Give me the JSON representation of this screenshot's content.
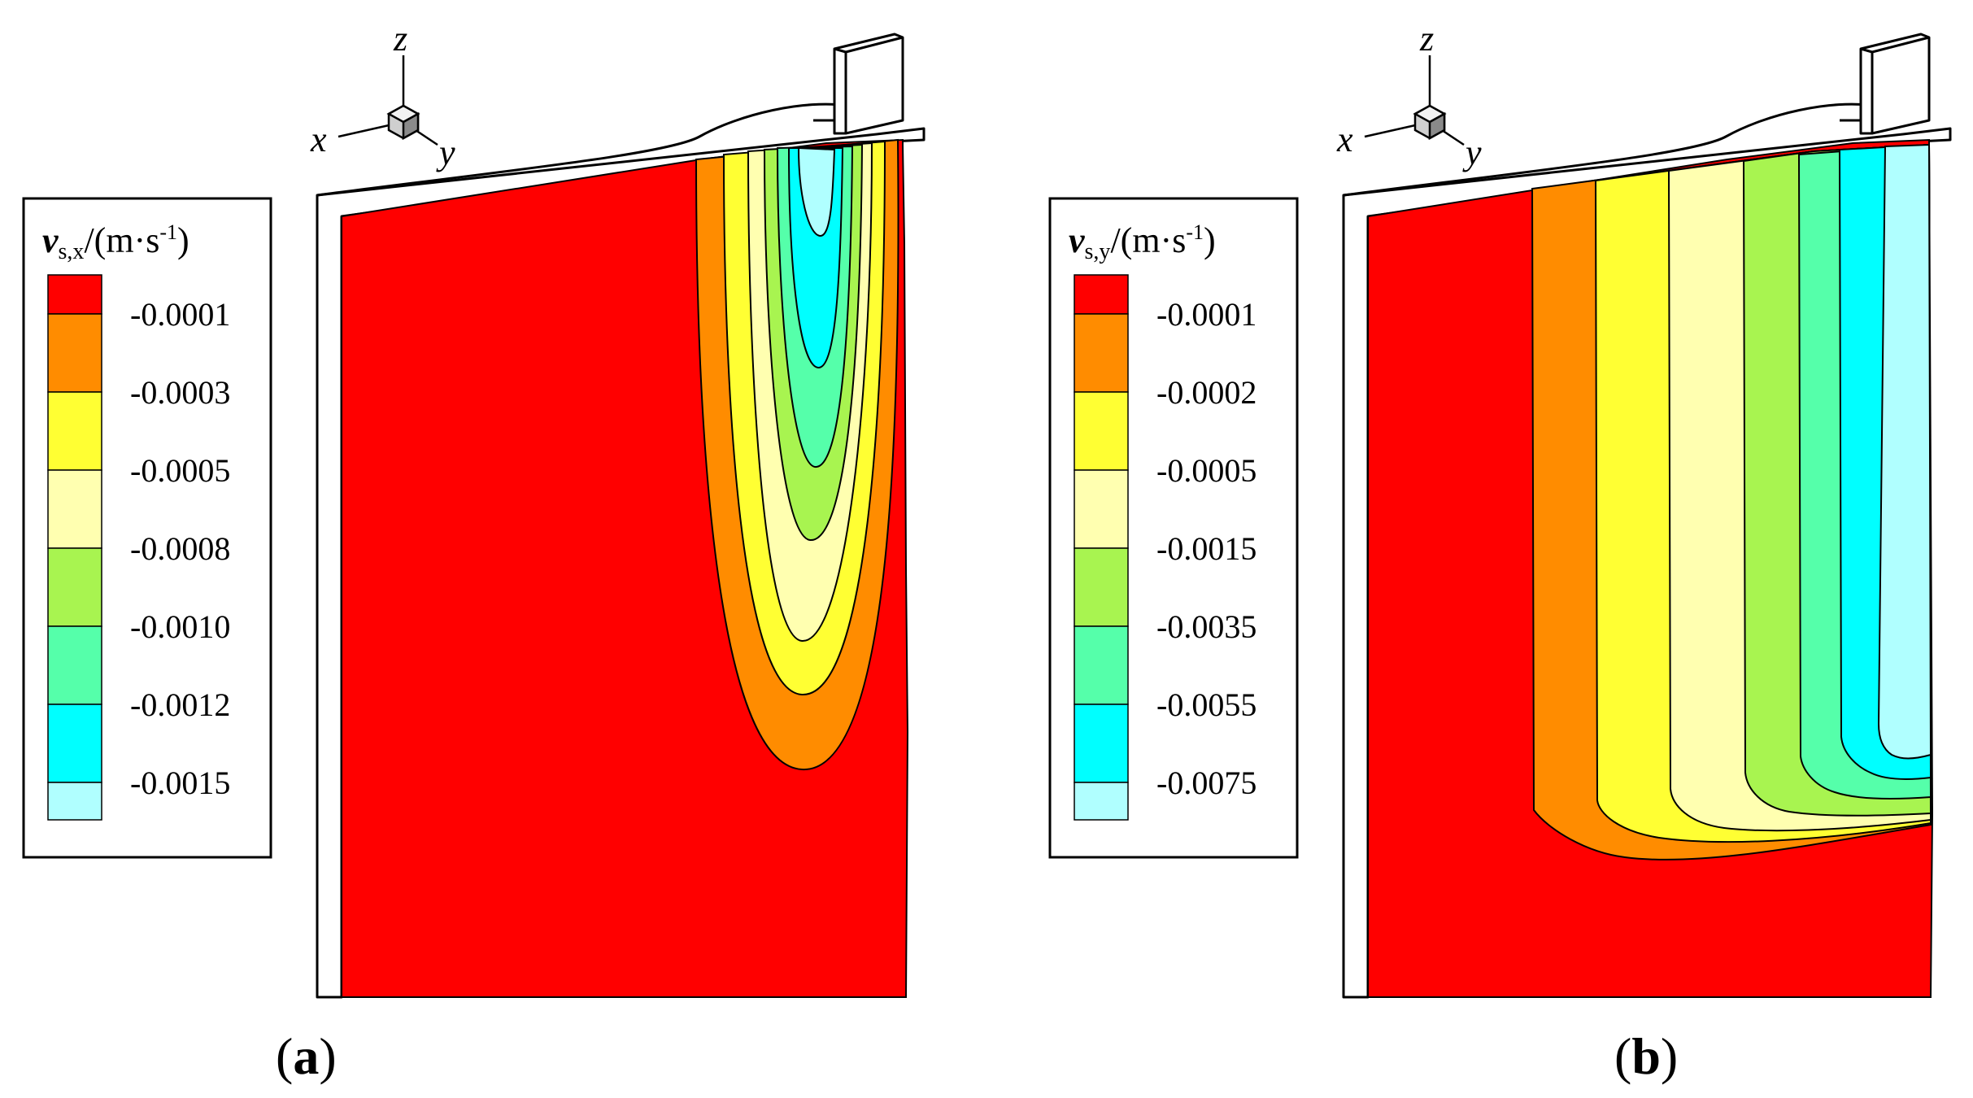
{
  "colors": {
    "red": "#ff0000",
    "orange": "#ff8c00",
    "yellow": "#ffff33",
    "light_yellow": "#ffffb0",
    "light_green": "#a8f450",
    "teal_green": "#55ffaa",
    "cyan": "#00ffff",
    "pale_cyan": "#b0ffff",
    "frame": "#ffffff",
    "stroke": "#000000"
  },
  "panels": [
    {
      "id": "a",
      "label_text": "a",
      "legend": {
        "title_main": "v",
        "title_sub": "s,x",
        "title_rest": "/(m·s",
        "title_exp": "-1",
        "title_close": ")",
        "labels": [
          "-0.0001",
          "-0.0003",
          "-0.0005",
          "-0.0008",
          "-0.0010",
          "-0.0012",
          "-0.0015"
        ]
      },
      "axes": {
        "x": "x",
        "y": "y",
        "z": "z"
      }
    },
    {
      "id": "b",
      "label_text": "b",
      "legend": {
        "title_main": "v",
        "title_sub": "s,y",
        "title_rest": "/(m·s",
        "title_exp": "-1",
        "title_close": ")",
        "labels": [
          "-0.0001",
          "-0.0002",
          "-0.0005",
          "-0.0015",
          "-0.0035",
          "-0.0055",
          "-0.0075"
        ]
      },
      "axes": {
        "x": "x",
        "y": "y",
        "z": "z"
      }
    }
  ]
}
